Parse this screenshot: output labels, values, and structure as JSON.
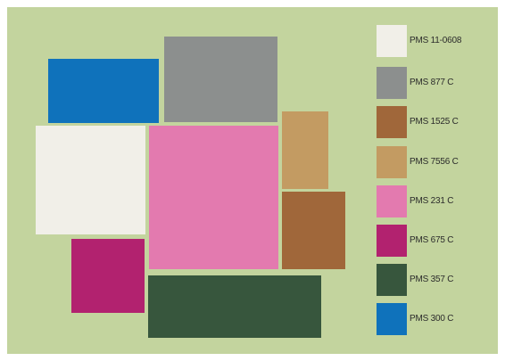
{
  "palette": [
    {
      "code": "PMS 11-0608",
      "color": "#f1efe8"
    },
    {
      "code": "PMS 877 C",
      "color": "#8c8f8e"
    },
    {
      "code": "PMS 1525 C",
      "color": "#a0673a"
    },
    {
      "code": "PMS 7556 C",
      "color": "#c39b62"
    },
    {
      "code": "PMS 231 C",
      "color": "#e37aaf"
    },
    {
      "code": "PMS 675 C",
      "color": "#b2226f"
    },
    {
      "code": "PMS 357 C",
      "color": "#37563d"
    },
    {
      "code": "PMS 300 C",
      "color": "#0f72bb"
    }
  ],
  "background_color": "#c3d49e"
}
